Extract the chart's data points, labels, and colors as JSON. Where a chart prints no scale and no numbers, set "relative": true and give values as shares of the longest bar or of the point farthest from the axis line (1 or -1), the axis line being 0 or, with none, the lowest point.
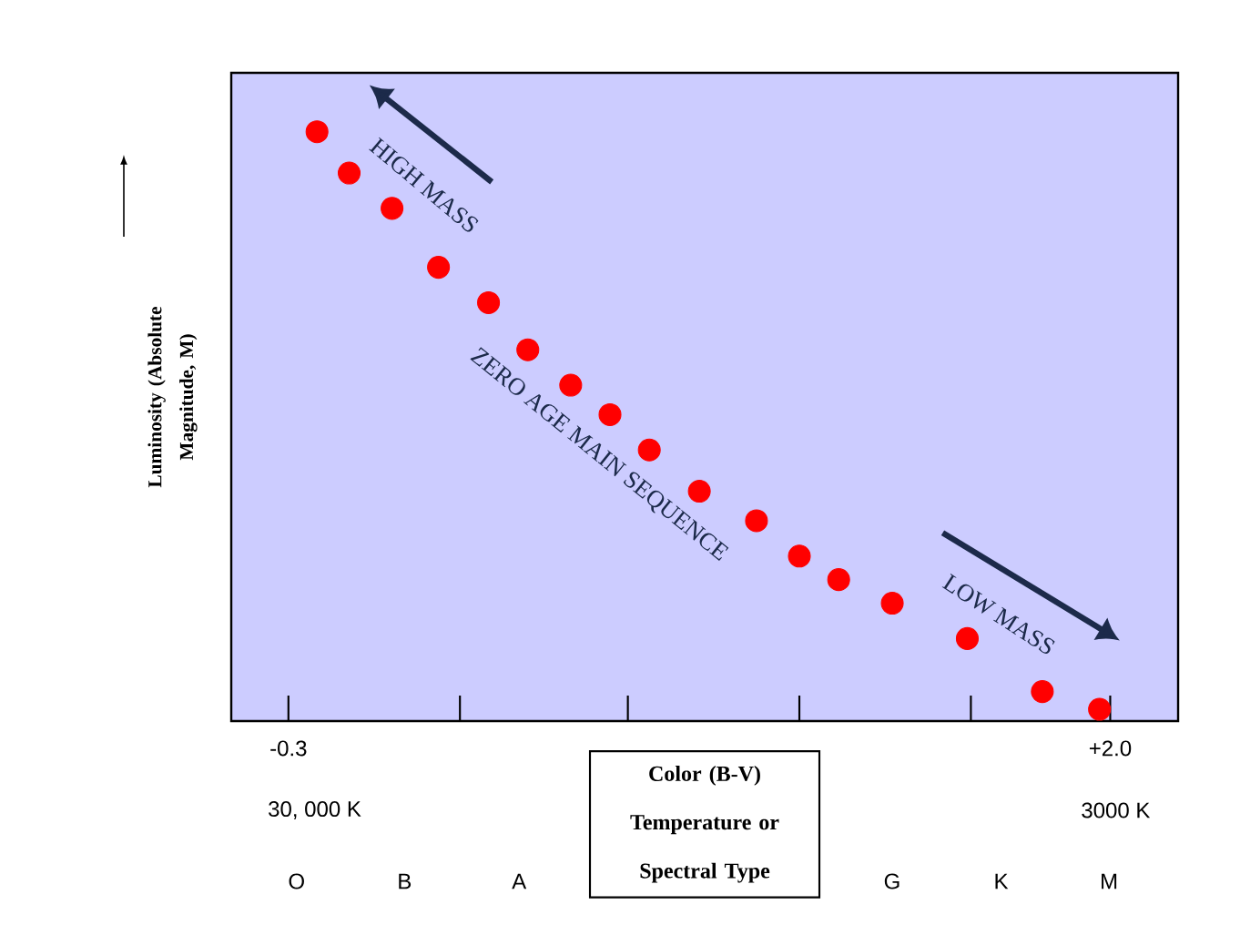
{
  "chart_data": {
    "type": "scatter",
    "relative": true,
    "marker": "circle",
    "tick_labels": "x",
    "xlabel": "Color (B-V) Temperature or Spectral Type",
    "ylabel": "Luminosity (Absolute Magnitude, M)",
    "xlim": [
      -0.46,
      2.19
    ],
    "xticks": [
      {
        "value": -0.3,
        "label": "-0.3"
      },
      {
        "value": 0.18,
        "label": null
      },
      {
        "value": 0.65,
        "label": null
      },
      {
        "value": 1.13,
        "label": null
      },
      {
        "value": 1.61,
        "label": null
      },
      {
        "value": 2.0,
        "label": "+2.0"
      }
    ],
    "x": [
      -0.22,
      -0.13,
      -0.01,
      0.12,
      0.26,
      0.37,
      0.49,
      0.6,
      0.71,
      0.85,
      1.01,
      1.13,
      1.24,
      1.39,
      1.6,
      1.81,
      1.97
    ],
    "series": [
      {
        "color": "#ff0000",
        "values": [
          1,
          0.93,
          0.87,
          0.77,
          0.71,
          0.63,
          0.57,
          0.52,
          0.46,
          0.39,
          0.34,
          0.28,
          0.24,
          0.2,
          0.14,
          0.05,
          0.02
        ]
      }
    ],
    "annotations": [
      "HIGH MASS",
      "ZERO AGE MAIN SEQUENCE",
      "LOW MASS",
      "30, 000 K",
      "3000 K",
      "O",
      "B",
      "A",
      "G",
      "K",
      "M"
    ]
  }
}
